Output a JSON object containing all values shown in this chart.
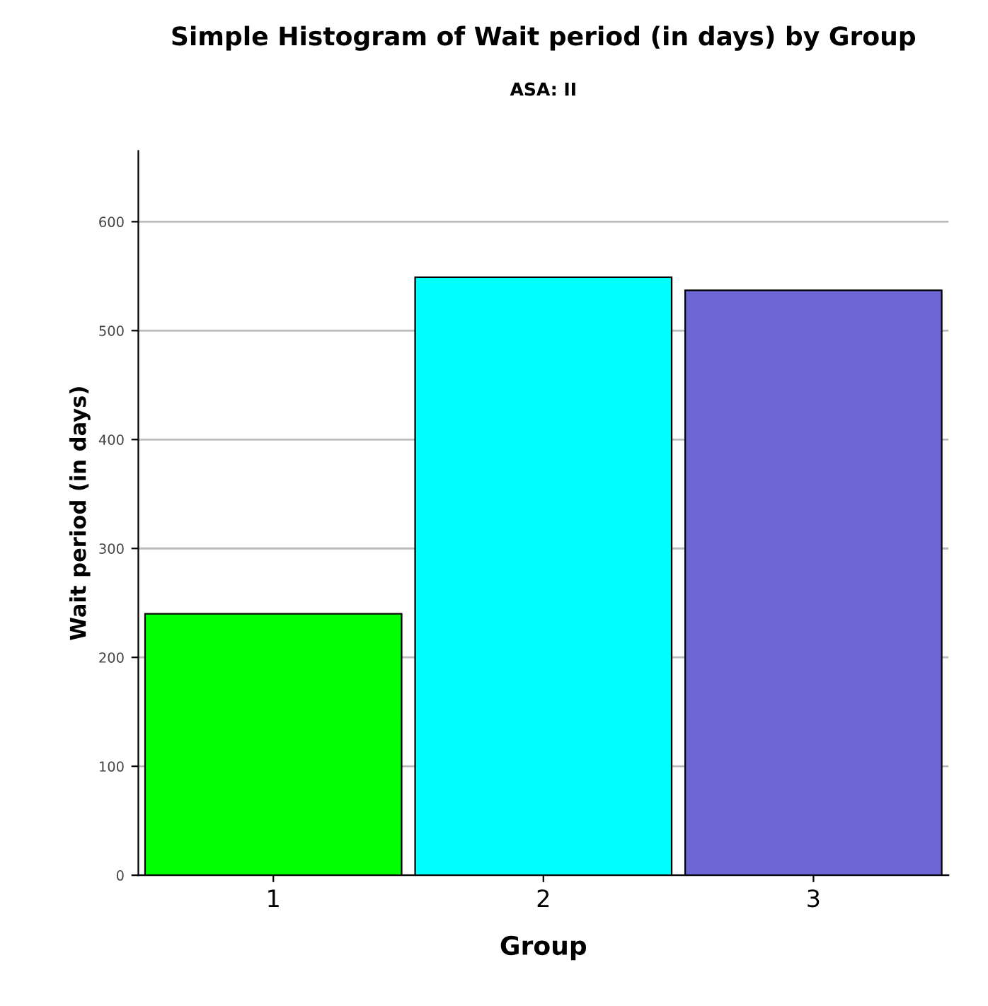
{
  "chart_data": {
    "type": "bar",
    "title": "Simple Histogram of Wait period (in days) by Group",
    "subtitle": "ASA: II",
    "xlabel": "Group",
    "ylabel": "Wait period (in days)",
    "categories": [
      "1",
      "2",
      "3"
    ],
    "values": [
      240,
      549,
      537
    ],
    "colors": [
      "#00ff00",
      "#00ffff",
      "#6b66d4"
    ],
    "ylim": [
      0,
      665
    ],
    "yticks": [
      0,
      100,
      200,
      300,
      400,
      500,
      600
    ],
    "grid": "y",
    "legend": false
  }
}
